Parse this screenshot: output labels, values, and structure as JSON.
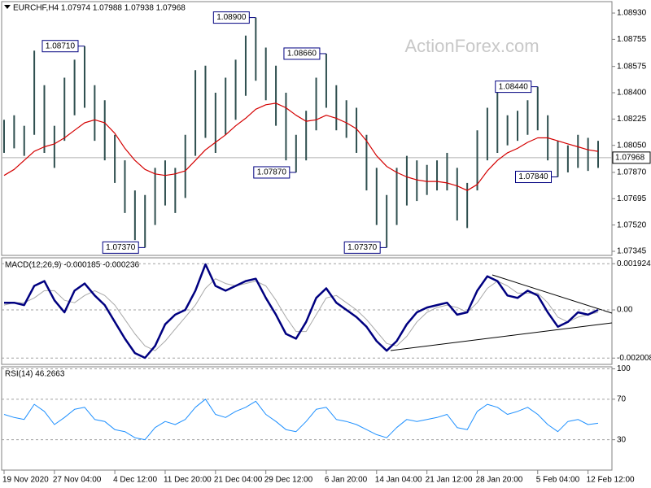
{
  "chart_data": [
    {
      "type": "range",
      "title": "EURCHF,H4 1.07974 1.07988 1.07938 1.07968",
      "watermark": "ActionForex.com",
      "categories": [
        "19 Nov 2020",
        null,
        null,
        null,
        null,
        "27 Nov 04:00",
        null,
        null,
        null,
        null,
        null,
        "4 Dec 12:00",
        null,
        null,
        null,
        null,
        "11 Dec 20:00",
        null,
        null,
        null,
        null,
        "21 Dec 04:00",
        null,
        null,
        null,
        null,
        "29 Dec 12:00",
        null,
        null,
        null,
        null,
        null,
        "6 Jan 20:00",
        null,
        null,
        null,
        null,
        "14 Jan 04:00",
        null,
        null,
        null,
        null,
        "21 Jan 12:00",
        null,
        null,
        null,
        null,
        "28 Jan 20:00",
        null,
        null,
        null,
        null,
        null,
        "5 Feb 04:00",
        null,
        null,
        null,
        null,
        "12 Feb 12:00",
        null
      ],
      "high": [
        1.0822,
        1.0825,
        1.0818,
        1.0868,
        1.0845,
        1.0818,
        1.085,
        1.0862,
        1.0871,
        1.0845,
        1.0835,
        1.0812,
        1.0795,
        1.0775,
        1.0772,
        1.079,
        1.0795,
        1.079,
        1.0812,
        1.0855,
        1.0858,
        1.084,
        1.085,
        1.0862,
        1.0878,
        1.089,
        1.087,
        1.0858,
        1.084,
        1.0812,
        1.0828,
        1.085,
        1.0866,
        1.0845,
        1.0835,
        1.083,
        1.0812,
        1.079,
        1.0772,
        1.079,
        1.0798,
        1.0795,
        1.0792,
        1.0795,
        1.08,
        1.079,
        1.078,
        1.0815,
        1.083,
        1.084,
        1.0825,
        1.0828,
        1.0835,
        1.0844,
        1.0825,
        1.0808,
        1.0805,
        1.0812,
        1.081,
        1.0808
      ],
      "low": [
        1.08,
        1.0803,
        1.0798,
        1.0812,
        1.08,
        1.079,
        1.0808,
        1.0825,
        1.083,
        1.0808,
        1.0795,
        1.078,
        1.076,
        1.0742,
        1.0737,
        1.0752,
        1.0765,
        1.076,
        1.077,
        1.0798,
        1.081,
        1.08,
        1.0812,
        1.0822,
        1.0838,
        1.0848,
        1.0835,
        1.0818,
        1.0795,
        1.0787,
        1.0795,
        1.0815,
        1.083,
        1.0815,
        1.081,
        1.08,
        1.0775,
        1.0752,
        1.0737,
        1.0752,
        1.0765,
        1.0768,
        1.0772,
        1.0775,
        1.0775,
        1.0755,
        1.075,
        1.0775,
        1.0795,
        1.08,
        1.0805,
        1.0808,
        1.0812,
        1.0815,
        1.0795,
        1.0784,
        1.0787,
        1.079,
        1.0788,
        1.079
      ],
      "color": "#2f4f4f",
      "overlay": {
        "color": "#d40000",
        "values": [
          1.0785,
          1.0789,
          1.0795,
          1.0801,
          1.0804,
          1.0806,
          1.081,
          1.0815,
          1.082,
          1.0822,
          1.082,
          1.0813,
          1.0803,
          1.0795,
          1.0789,
          1.0786,
          1.0785,
          1.0786,
          1.0788,
          1.0795,
          1.0802,
          1.0807,
          1.0812,
          1.0818,
          1.0823,
          1.0829,
          1.0832,
          1.0833,
          1.083,
          1.0825,
          1.0821,
          1.0822,
          1.0825,
          1.0823,
          1.082,
          1.0816,
          1.0808,
          1.0798,
          1.0791,
          1.0787,
          1.0784,
          1.0782,
          1.0781,
          1.0781,
          1.078,
          1.0778,
          1.0775,
          1.0779,
          1.0788,
          1.0795,
          1.08,
          1.0803,
          1.0807,
          1.081,
          1.081,
          1.0808,
          1.0806,
          1.0804,
          1.0802,
          1.0801
        ]
      },
      "annotations": [
        {
          "value": 1.0871,
          "label": "1.08710"
        },
        {
          "value": 1.089,
          "label": "1.08900"
        },
        {
          "value": 1.0866,
          "label": "1.08660"
        },
        {
          "value": 1.0844,
          "label": "1.08440"
        },
        {
          "value": 1.0737,
          "label": "1.07370"
        },
        {
          "value": 1.0787,
          "label": "1.07870"
        },
        {
          "value": 1.0737,
          "label": "1.07370"
        },
        {
          "value": 1.0784,
          "label": "1.07840"
        }
      ],
      "last_price": 1.07968,
      "ylim": [
        1.07318,
        1.09006
      ],
      "yticks": [
        {
          "value": 1.0893,
          "label": "1.08930"
        },
        {
          "value": 1.08755,
          "label": "1.08755"
        },
        {
          "value": 1.08575,
          "label": "1.08575"
        },
        {
          "value": 1.084,
          "label": "1.08400"
        },
        {
          "value": 1.08225,
          "label": "1.08225"
        },
        {
          "value": 1.0805,
          "label": "1.08050"
        },
        {
          "value": 1.0787,
          "label": "1.07870"
        },
        {
          "value": 1.07695,
          "label": "1.07695"
        },
        {
          "value": 1.0752,
          "label": "1.07520"
        },
        {
          "value": 1.07345,
          "label": "1.07345"
        }
      ],
      "grid": false
    },
    {
      "type": "macd",
      "title": "MACD(12,26,9) -0.000185 -0.000236",
      "series": [
        {
          "color": "#000080",
          "values": [
            0.0003,
            0.0003,
            0.0002,
            0.001,
            0.0012,
            0.0004,
            -0.0001,
            0.0008,
            0.0011,
            0.0006,
            0.0002,
            -0.0005,
            -0.0012,
            -0.0018,
            -0.002,
            -0.0015,
            -0.0006,
            -0.0002,
            0.0,
            0.0008,
            0.0019,
            0.001,
            0.0008,
            0.001,
            0.0012,
            0.0013,
            0.0005,
            -0.0002,
            -0.001,
            -0.0012,
            -0.0005,
            0.0005,
            0.0009,
            0.0003,
            0.0,
            -0.0003,
            -0.0007,
            -0.0013,
            -0.0017,
            -0.0013,
            -0.0006,
            -0.0001,
            0.0001,
            0.0002,
            0.0003,
            -0.0002,
            -0.0001,
            0.0008,
            0.0014,
            0.0012,
            0.0006,
            0.0005,
            0.0008,
            0.0006,
            -0.0001,
            -0.0007,
            -0.0005,
            -0.0001,
            -0.0002,
            0.0
          ]
        },
        {
          "color": "#a8a8a8",
          "values": [
            0.0002,
            0.0003,
            0.0003,
            0.0005,
            0.0008,
            0.0008,
            0.0004,
            0.0003,
            0.0006,
            0.0008,
            0.0006,
            0.0002,
            -0.0004,
            -0.001,
            -0.0015,
            -0.0017,
            -0.0013,
            -0.0008,
            -0.0003,
            0.0002,
            0.0009,
            0.0013,
            0.0011,
            0.001,
            0.0011,
            0.0012,
            0.001,
            0.0004,
            -0.0003,
            -0.0009,
            -0.0009,
            -0.0002,
            0.0005,
            0.0006,
            0.0003,
            0.0,
            -0.0004,
            -0.0009,
            -0.0014,
            -0.0015,
            -0.0011,
            -0.0005,
            -0.0001,
            0.0001,
            0.0002,
            0.0001,
            -0.0001,
            0.0003,
            0.0009,
            0.0012,
            0.001,
            0.0007,
            0.0007,
            0.0007,
            0.0003,
            -0.0003,
            -0.0005,
            -0.0003,
            -0.0002,
            -0.0001
          ]
        }
      ],
      "ylim": [
        -0.00227,
        0.00217
      ],
      "yticks": [
        {
          "value": 0.001924,
          "label": "0.001924"
        },
        {
          "value": 0,
          "label": "0.00"
        },
        {
          "value": -0.002008,
          "label": "-0.002008"
        }
      ],
      "grid": true
    },
    {
      "type": "line",
      "title": "RSI(14) 46.2663",
      "values": [
        55,
        52,
        50,
        65,
        58,
        45,
        52,
        60,
        62,
        50,
        48,
        40,
        38,
        32,
        30,
        42,
        48,
        45,
        50,
        62,
        70,
        55,
        52,
        58,
        62,
        68,
        55,
        48,
        40,
        38,
        48,
        60,
        62,
        50,
        48,
        45,
        40,
        35,
        32,
        42,
        50,
        48,
        50,
        52,
        55,
        42,
        40,
        58,
        65,
        62,
        55,
        58,
        62,
        55,
        45,
        38,
        48,
        50,
        45,
        46.2663
      ],
      "color": "#1e90ff",
      "ylim": [
        0,
        102
      ],
      "yticks": [
        100,
        70,
        30
      ],
      "grid": true
    }
  ]
}
